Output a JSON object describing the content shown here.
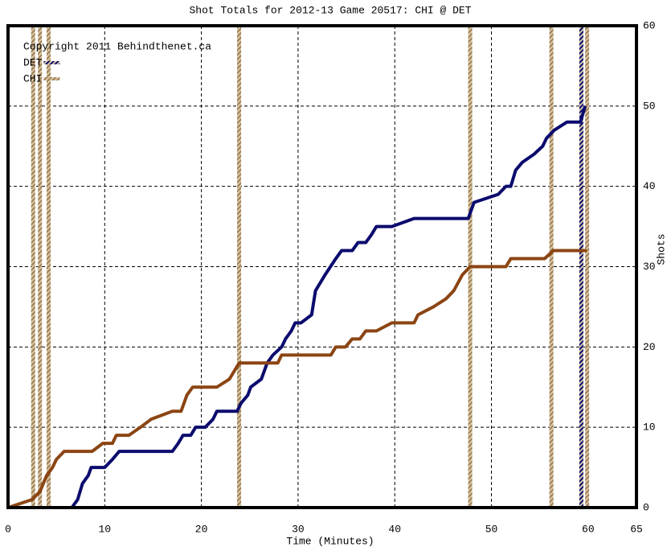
{
  "chart_data": {
    "type": "line",
    "title": "Shot Totals for 2012-13 Game 20517: CHI @ DET",
    "annotation": "Copyright 2011 Behindthenet.ca",
    "x_label": "Time (Minutes)",
    "y_label": "Shots",
    "xlim": [
      0,
      65
    ],
    "ylim": [
      0,
      60
    ],
    "xticks": [
      0,
      10,
      20,
      30,
      40,
      50,
      60,
      65
    ],
    "yticks": [
      0,
      10,
      20,
      30,
      40,
      50,
      60
    ],
    "grid": true,
    "legend": "upper left",
    "series": [
      {
        "name": "DET",
        "color": "#0b0b6e",
        "x": [
          0,
          6.6,
          7.2,
          7.7,
          8.3,
          8.6,
          9.6,
          10.0,
          10.8,
          11.5,
          17.0,
          17.6,
          18.1,
          18.9,
          19.4,
          20.4,
          21.2,
          21.6,
          23.7,
          24.1,
          24.8,
          25.1,
          26.2,
          26.8,
          27.4,
          28.3,
          28.7,
          29.3,
          29.7,
          30.3,
          31.4,
          31.8,
          32.8,
          33.9,
          34.5,
          35.6,
          36.2,
          37.0,
          37.6,
          38.1,
          39.7,
          42.0,
          47.6,
          48.2,
          50.7,
          51.5,
          52.0,
          52.5,
          53.2,
          54.4,
          55.3,
          55.7,
          56.5,
          57.8,
          59.2,
          59.7
        ],
        "y": [
          0,
          0,
          1,
          3,
          4,
          5,
          5,
          5,
          6,
          7,
          7,
          8,
          9,
          9,
          10,
          10,
          11,
          12,
          12,
          13,
          14,
          15,
          16,
          18,
          19,
          20,
          21,
          22,
          23,
          23,
          24,
          27,
          29,
          31,
          32,
          32,
          33,
          33,
          34,
          35,
          35,
          36,
          36,
          38,
          39,
          40,
          40,
          42,
          43,
          44,
          45,
          46,
          47,
          48,
          48,
          50
        ],
        "marker_x": [
          59.3
        ]
      },
      {
        "name": "CHI",
        "color": "#8b4513",
        "x": [
          0,
          2.5,
          3.3,
          4.0,
          4.6,
          5.0,
          5.8,
          8.7,
          9.8,
          10.8,
          11.2,
          12.5,
          13.7,
          14.8,
          17.0,
          17.9,
          18.5,
          19.1,
          21.6,
          22.9,
          23.9,
          27.9,
          28.3,
          33.4,
          33.9,
          34.9,
          35.6,
          36.4,
          37.0,
          38.1,
          39.7,
          42.0,
          42.4,
          44.0,
          45.3,
          46.1,
          47.0,
          47.8,
          51.5,
          52.0,
          55.5,
          56.4,
          59.85
        ],
        "y": [
          0,
          1,
          2,
          4,
          5,
          6,
          7,
          7,
          8,
          8,
          9,
          9,
          10,
          11,
          12,
          12,
          14,
          15,
          15,
          16,
          18,
          18,
          19,
          19,
          20,
          20,
          21,
          21,
          22,
          22,
          23,
          23,
          24,
          25,
          26,
          27,
          29,
          30,
          30,
          31,
          31,
          32,
          32
        ],
        "marker_x": [
          2.6,
          3.3,
          4.2,
          23.9,
          47.8,
          56.2,
          59.9
        ]
      }
    ]
  }
}
